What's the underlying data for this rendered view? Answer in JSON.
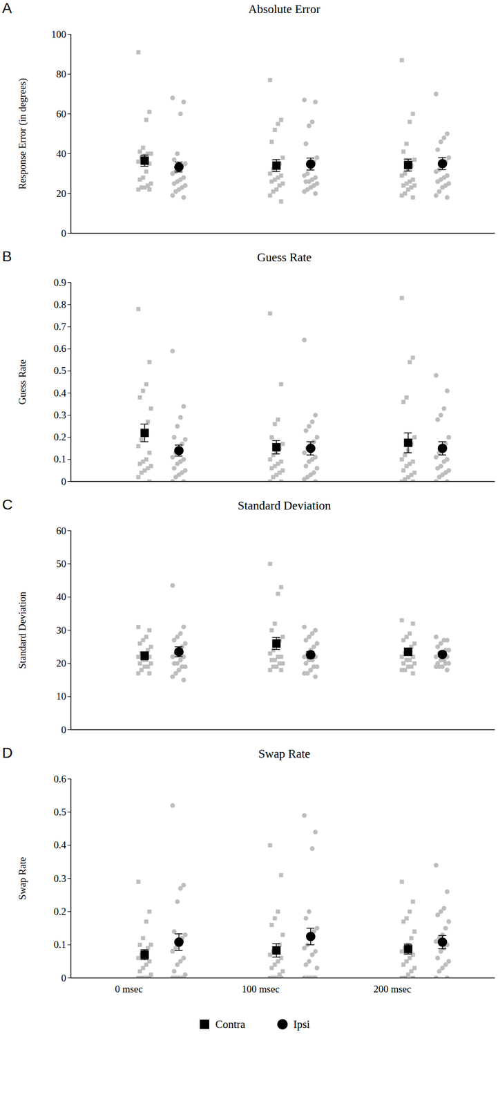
{
  "chart_data": [
    {
      "type": "scatter",
      "label": "A",
      "title": "Absolute Error",
      "y_label": "Response Error (in degrees)",
      "categories": [
        "0 msec",
        "100 msec",
        "200 msec"
      ],
      "ylim": [
        0,
        100
      ],
      "yticks": [
        0,
        20,
        40,
        60,
        80,
        100
      ],
      "tick_labels": "y",
      "series": [
        {
          "name": "Contra",
          "color": "#000000",
          "marker": "square",
          "values": [
            36.5,
            34,
            34.3
          ],
          "error": [
            2.8,
            3,
            3
          ],
          "points": [
            [
              91,
              61,
              57,
              43,
              41,
              40,
              40,
              39,
              38,
              36,
              35,
              31,
              28,
              27,
              25,
              24,
              23,
              23,
              22,
              22
            ],
            [
              77,
              57,
              55,
              52,
              46,
              38,
              35,
              33,
              32,
              30,
              29,
              28,
              27,
              26,
              25,
              24,
              22,
              21,
              19,
              16
            ],
            [
              87,
              60,
              56,
              45,
              41,
              37,
              34,
              32,
              30,
              29,
              27,
              26,
              25,
              24,
              24,
              23,
              22,
              20,
              19,
              18
            ]
          ]
        },
        {
          "name": "Ipsi",
          "color": "#000000",
          "marker": "circle",
          "values": [
            33.3,
            34.8,
            35
          ],
          "error": [
            2.5,
            3,
            3
          ],
          "points": [
            [
              68,
              66,
              60,
              40,
              37,
              35,
              34,
              33,
              31,
              30,
              28,
              27,
              26,
              25,
              24,
              23,
              22,
              21,
              19,
              18
            ],
            [
              67,
              66,
              56,
              54,
              45,
              38,
              36,
              33,
              30,
              29,
              28,
              27,
              26,
              26,
              25,
              24,
              23,
              22,
              21,
              20
            ],
            [
              70,
              50,
              48,
              46,
              42,
              38,
              36,
              34,
              32,
              31,
              29,
              28,
              27,
              26,
              25,
              24,
              23,
              21,
              19,
              18
            ]
          ]
        }
      ]
    },
    {
      "type": "scatter",
      "label": "B",
      "title": "Guess Rate",
      "y_label": "Guess Rate",
      "categories": [
        "0 msec",
        "100 msec",
        "200 msec"
      ],
      "ylim": [
        0,
        0.9
      ],
      "yticks": [
        0,
        0.1,
        0.2,
        0.3,
        0.4,
        0.5,
        0.6,
        0.7,
        0.8,
        0.9
      ],
      "tick_labels": "y",
      "series": [
        {
          "name": "Contra",
          "color": "#000000",
          "marker": "square",
          "values": [
            0.22,
            0.155,
            0.175
          ],
          "error": [
            0.04,
            0.03,
            0.045
          ],
          "points": [
            [
              0.78,
              0.54,
              0.44,
              0.41,
              0.38,
              0.33,
              0.27,
              0.22,
              0.19,
              0.16,
              0.13,
              0.1,
              0.09,
              0.08,
              0.07,
              0.06,
              0.05,
              0.04,
              0.02,
              0
            ],
            [
              0.76,
              0.44,
              0.28,
              0.26,
              0.2,
              0.17,
              0.15,
              0.13,
              0.12,
              0.1,
              0.09,
              0.08,
              0.07,
              0.06,
              0.05,
              0.04,
              0.03,
              0.02,
              0,
              0
            ],
            [
              0.83,
              0.56,
              0.54,
              0.38,
              0.36,
              0.2,
              0.17,
              0.14,
              0.12,
              0.1,
              0.09,
              0.08,
              0.07,
              0.05,
              0.04,
              0.03,
              0.02,
              0.01,
              0,
              0
            ]
          ]
        },
        {
          "name": "Ipsi",
          "color": "#000000",
          "marker": "circle",
          "values": [
            0.14,
            0.15,
            0.15
          ],
          "error": [
            0.025,
            0.03,
            0.03
          ],
          "points": [
            [
              0.59,
              0.34,
              0.29,
              0.25,
              0.2,
              0.19,
              0.17,
              0.15,
              0.13,
              0.11,
              0.1,
              0.09,
              0.08,
              0.06,
              0.05,
              0.04,
              0.03,
              0.02,
              0,
              0
            ],
            [
              0.64,
              0.3,
              0.27,
              0.25,
              0.23,
              0.2,
              0.18,
              0.17,
              0.15,
              0.13,
              0.11,
              0.1,
              0.09,
              0.07,
              0.06,
              0.04,
              0.03,
              0.02,
              0.01,
              0
            ],
            [
              0.48,
              0.41,
              0.33,
              0.3,
              0.28,
              0.2,
              0.17,
              0.15,
              0.13,
              0.11,
              0.1,
              0.09,
              0.07,
              0.06,
              0.05,
              0.04,
              0.03,
              0.02,
              0,
              0
            ]
          ]
        }
      ]
    },
    {
      "type": "scatter",
      "label": "C",
      "title": "Standard Deviation",
      "y_label": "Standard Deviation",
      "categories": [
        "0 msec",
        "100 msec",
        "200 msec"
      ],
      "ylim": [
        0,
        60
      ],
      "yticks": [
        0,
        10,
        20,
        30,
        40,
        50,
        60
      ],
      "tick_labels": "y",
      "series": [
        {
          "name": "Contra",
          "color": "#000000",
          "marker": "square",
          "values": [
            22.3,
            26,
            23.5
          ],
          "error": [
            1.2,
            1.8,
            1.1
          ],
          "points": [
            [
              31,
              30,
              28,
              27,
              26,
              25,
              24,
              23,
              23,
              22,
              22,
              21,
              21,
              20,
              20,
              19,
              19,
              18,
              17,
              17
            ],
            [
              50,
              43,
              41,
              32,
              30,
              28,
              27,
              26,
              24,
              23,
              22,
              22,
              21,
              21,
              20,
              20,
              19,
              19,
              18,
              18
            ],
            [
              33,
              32,
              29,
              28,
              27,
              26,
              25,
              24,
              23,
              22,
              22,
              21,
              21,
              20,
              20,
              19,
              19,
              18,
              18,
              17
            ]
          ]
        },
        {
          "name": "Ipsi",
          "color": "#000000",
          "marker": "circle",
          "values": [
            23.5,
            22.6,
            22.7
          ],
          "error": [
            1.5,
            1,
            0.7
          ],
          "points": [
            [
              43.5,
              31,
              29,
              28,
              27,
              26,
              25,
              24,
              23,
              22,
              22,
              21,
              20,
              20,
              19,
              19,
              18,
              17,
              16,
              15
            ],
            [
              31,
              30,
              29,
              28,
              27,
              26,
              25,
              24,
              23,
              22,
              22,
              21,
              21,
              20,
              19,
              19,
              18,
              17,
              17,
              16
            ],
            [
              28,
              27,
              27,
              26,
              25,
              24,
              24,
              23,
              23,
              22,
              22,
              21,
              21,
              20,
              20,
              20,
              19,
              19,
              19,
              18
            ]
          ]
        }
      ]
    },
    {
      "type": "scatter",
      "label": "D",
      "title": "Swap Rate",
      "y_label": "Swap Rate",
      "categories": [
        "0 msec",
        "100 msec",
        "200 msec"
      ],
      "ylim": [
        0,
        0.6
      ],
      "yticks": [
        0,
        0.1,
        0.2,
        0.3,
        0.4,
        0.5,
        0.6
      ],
      "legend": "bottom",
      "series": [
        {
          "name": "Contra",
          "color": "#000000",
          "marker": "square",
          "values": [
            0.07,
            0.083,
            0.087
          ],
          "error": [
            0.015,
            0.02,
            0.015
          ],
          "points": [
            [
              0.29,
              0.2,
              0.17,
              0.12,
              0.1,
              0.1,
              0.09,
              0.08,
              0.07,
              0.06,
              0.05,
              0.04,
              0.03,
              0.02,
              0.01,
              0,
              0,
              0,
              0,
              0
            ],
            [
              0.4,
              0.31,
              0.2,
              0.18,
              0.16,
              0.13,
              0.1,
              0.09,
              0.08,
              0.07,
              0.06,
              0.05,
              0.04,
              0.03,
              0.02,
              0.01,
              0,
              0,
              0,
              0
            ],
            [
              0.29,
              0.23,
              0.2,
              0.18,
              0.17,
              0.14,
              0.12,
              0.1,
              0.09,
              0.08,
              0.07,
              0.06,
              0.05,
              0.04,
              0.03,
              0.02,
              0.01,
              0,
              0,
              0
            ]
          ]
        },
        {
          "name": "Ipsi",
          "color": "#000000",
          "marker": "circle",
          "values": [
            0.108,
            0.125,
            0.108
          ],
          "error": [
            0.025,
            0.025,
            0.02
          ],
          "points": [
            [
              0.52,
              0.28,
              0.27,
              0.23,
              0.14,
              0.13,
              0.12,
              0.1,
              0.09,
              0.08,
              0.06,
              0.05,
              0.04,
              0.02,
              0.01,
              0,
              0,
              0,
              0,
              0
            ],
            [
              0.49,
              0.44,
              0.39,
              0.2,
              0.18,
              0.15,
              0.14,
              0.12,
              0.1,
              0.09,
              0.08,
              0.07,
              0.05,
              0.04,
              0.03,
              0,
              0,
              0,
              0,
              0
            ],
            [
              0.34,
              0.26,
              0.21,
              0.2,
              0.19,
              0.17,
              0.15,
              0.13,
              0.12,
              0.11,
              0.1,
              0.09,
              0.08,
              0.06,
              0.05,
              0.04,
              0.03,
              0.02,
              0,
              0
            ]
          ]
        }
      ]
    }
  ]
}
